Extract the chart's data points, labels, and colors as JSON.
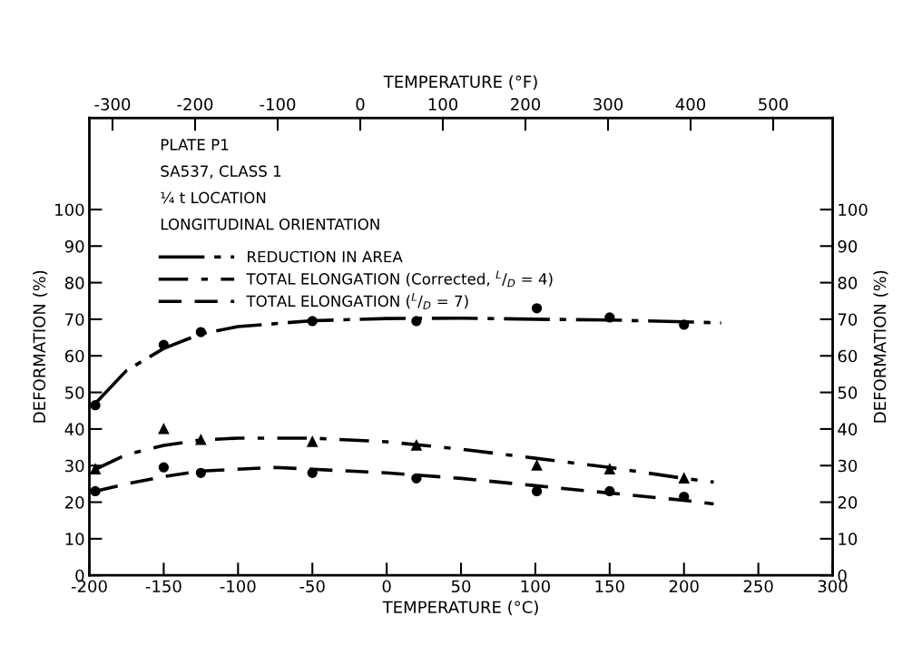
{
  "chart_data": {
    "type": "scatter",
    "xlabel": "TEMPERATURE (°C)",
    "ylabel": "DEFORMATION (%)",
    "y2label": "DEFORMATION (%)",
    "x2label": "TEMPERATURE (°F)",
    "annotations": [
      "PLATE P1",
      "SA537, CLASS 1",
      "¼ t LOCATION",
      "LONGITUDINAL ORIENTATION"
    ],
    "series": [
      {
        "color": "#000000",
        "marker": "circle",
        "x": [
          -196,
          -150,
          -125,
          -50,
          20,
          101,
          150,
          200
        ],
        "values": [
          46.5,
          63,
          66.5,
          69.5,
          69.5,
          73,
          70.5,
          68.5
        ]
      },
      {
        "name": "REDUCTION IN AREA",
        "type": "line",
        "color": "#000000",
        "line_style": "dashdot",
        "marker": "none",
        "x": [
          -196,
          -175,
          -150,
          -125,
          -100,
          -50,
          0,
          50,
          100,
          150,
          200,
          225
        ],
        "values": [
          47,
          56,
          62,
          66,
          68,
          69.6,
          70.2,
          70.3,
          70,
          69.8,
          69.3,
          69
        ]
      },
      {
        "color": "#000000",
        "marker": "triangle",
        "x": [
          -196,
          -150,
          -125,
          -50,
          20,
          101,
          150,
          200
        ],
        "values": [
          29,
          40,
          37,
          36.5,
          35.5,
          30,
          29,
          26.5
        ]
      },
      {
        "name": "TOTAL ELONGATION (Corrected, $^{L}$/$_{D}$ = 4)",
        "type": "line",
        "color": "#000000",
        "line_style": "dashdotted",
        "marker": "none",
        "x": [
          -196,
          -175,
          -150,
          -125,
          -100,
          -50,
          0,
          50,
          100,
          150,
          200,
          220
        ],
        "values": [
          29,
          33,
          35.5,
          37,
          37.5,
          37.5,
          36.5,
          34.5,
          32,
          29.5,
          26.5,
          25.5
        ]
      },
      {
        "color": "#000000",
        "marker": "circle",
        "x": [
          -196,
          -150,
          -125,
          -50,
          20,
          101,
          150,
          200
        ],
        "values": [
          23,
          29.5,
          28,
          28,
          26.5,
          23,
          23,
          21.5
        ]
      },
      {
        "name": "TOTAL ELONGATION ($^{L}$/$_{D}$ = 7)",
        "type": "line",
        "color": "#000000",
        "line_style": "dashed",
        "marker": "none",
        "x": [
          -196,
          -175,
          -150,
          -125,
          -75,
          -50,
          0,
          50,
          100,
          150,
          200,
          220
        ],
        "values": [
          23,
          25,
          27,
          28.5,
          29.5,
          29,
          28,
          26.5,
          24.5,
          22.5,
          20.5,
          19.5
        ]
      }
    ],
    "xlim": [
      -200,
      300
    ],
    "xticks": [
      -200,
      -150,
      -100,
      -50,
      0,
      50,
      100,
      150,
      200,
      250,
      300
    ],
    "x2lim": [
      -328,
      572
    ],
    "x2ticks": [
      -300,
      -200,
      -100,
      0,
      100,
      200,
      300,
      400,
      500
    ],
    "ylim": [
      0,
      125
    ],
    "yticks": [
      0,
      10,
      20,
      30,
      40,
      50,
      60,
      70,
      80,
      90,
      100
    ],
    "y2lim": [
      0,
      125
    ],
    "y2ticks": [
      0,
      10,
      20,
      30,
      40,
      50,
      60,
      70,
      80,
      90,
      100
    ],
    "grid": false,
    "legend": "top left"
  }
}
